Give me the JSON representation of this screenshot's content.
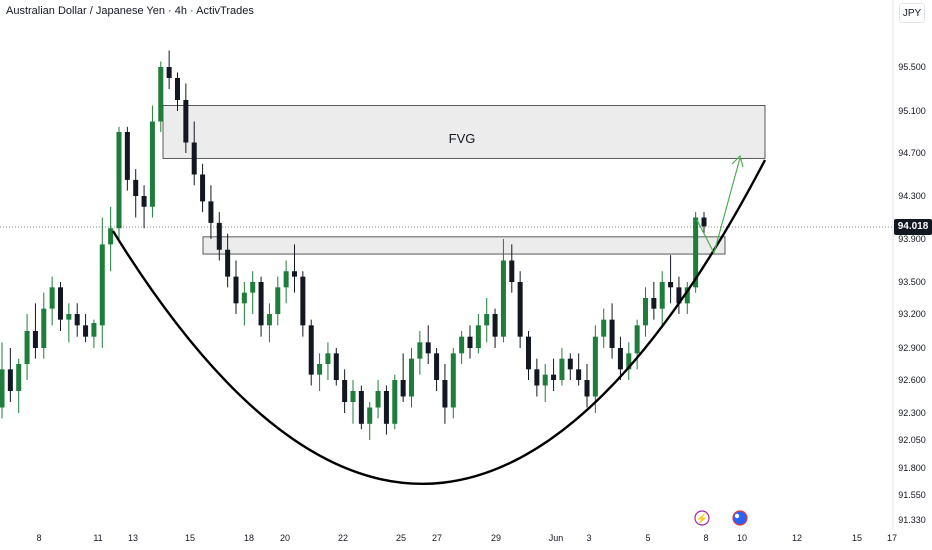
{
  "header": {
    "title": "Australian Dollar / Japanese Yen · 4h · ActivTrades",
    "currency": "JPY"
  },
  "price_tag": "94.018",
  "colors": {
    "bull": "#1e7d3a",
    "bear": "#131722",
    "curve": "#000000",
    "zone_fill": "#ececec",
    "zone_stroke": "#333333",
    "arrow": "#4caf50",
    "event_purple": "#9c27b0",
    "event_blue": "#2962ff"
  },
  "chart_data": {
    "type": "candlestick",
    "title": "Australian Dollar / Japanese Yen · 4h · ActivTrades",
    "xlabel": "",
    "ylabel": "",
    "ylim": [
      91.2,
      95.8
    ],
    "y_ticks": [
      "95.500",
      "95.100",
      "94.700",
      "94.300",
      "93.900",
      "93.500",
      "93.200",
      "92.900",
      "92.600",
      "92.300",
      "92.050",
      "91.800",
      "91.550",
      "91.330"
    ],
    "x_ticks": [
      "8",
      "11",
      "13",
      "15",
      "18",
      "20",
      "22",
      "25",
      "27",
      "29",
      "Jun",
      "3",
      "5",
      "8",
      "10",
      "12",
      "15",
      "17"
    ],
    "last_price": 94.018,
    "annotations": [
      {
        "type": "zone",
        "label": "FVG",
        "x_from": "13",
        "x_to": "10",
        "y_from": 94.65,
        "y_to": 95.15
      },
      {
        "type": "zone",
        "label": "",
        "x_from": "15",
        "x_to": "8",
        "y_from": 93.76,
        "y_to": 93.92
      },
      {
        "type": "curve",
        "label": "",
        "description": "cup"
      },
      {
        "type": "arrow",
        "label": "",
        "from": 93.78,
        "to": 94.7
      }
    ],
    "series": [
      {
        "name": "AUDJPY",
        "ohlc": [
          [
            92.35,
            92.95,
            92.25,
            92.7
          ],
          [
            92.7,
            92.9,
            92.4,
            92.5
          ],
          [
            92.5,
            92.8,
            92.3,
            92.75
          ],
          [
            92.75,
            93.2,
            92.6,
            93.05
          ],
          [
            93.05,
            93.3,
            92.8,
            92.9
          ],
          [
            92.9,
            93.4,
            92.8,
            93.25
          ],
          [
            93.25,
            93.55,
            93.1,
            93.45
          ],
          [
            93.45,
            93.5,
            93.05,
            93.15
          ],
          [
            93.15,
            93.3,
            92.95,
            93.2
          ],
          [
            93.2,
            93.3,
            93.0,
            93.1
          ],
          [
            93.1,
            93.2,
            92.95,
            93.0
          ],
          [
            93.0,
            93.15,
            92.9,
            93.12
          ],
          [
            93.1,
            94.1,
            92.9,
            93.85
          ],
          [
            93.85,
            94.2,
            93.6,
            94.0
          ],
          [
            94.0,
            94.95,
            93.9,
            94.9
          ],
          [
            94.9,
            94.95,
            94.35,
            94.45
          ],
          [
            94.45,
            94.55,
            94.1,
            94.3
          ],
          [
            94.3,
            94.4,
            94.0,
            94.2
          ],
          [
            94.2,
            95.15,
            94.1,
            95.0
          ],
          [
            95.0,
            95.55,
            94.9,
            95.5
          ],
          [
            95.5,
            95.65,
            95.3,
            95.4
          ],
          [
            95.4,
            95.45,
            95.1,
            95.2
          ],
          [
            95.2,
            95.35,
            94.7,
            94.8
          ],
          [
            94.8,
            95.0,
            94.4,
            94.5
          ],
          [
            94.5,
            94.6,
            94.15,
            94.25
          ],
          [
            94.25,
            94.4,
            93.9,
            94.05
          ],
          [
            94.05,
            94.15,
            93.7,
            93.8
          ],
          [
            93.8,
            93.95,
            93.45,
            93.55
          ],
          [
            93.55,
            93.7,
            93.2,
            93.3
          ],
          [
            93.3,
            93.5,
            93.1,
            93.4
          ],
          [
            93.4,
            93.6,
            93.2,
            93.5
          ],
          [
            93.5,
            93.55,
            93.0,
            93.1
          ],
          [
            93.1,
            93.3,
            92.95,
            93.2
          ],
          [
            93.2,
            93.55,
            93.1,
            93.45
          ],
          [
            93.45,
            93.7,
            93.3,
            93.6
          ],
          [
            93.6,
            93.85,
            93.4,
            93.55
          ],
          [
            93.55,
            93.6,
            93.0,
            93.1
          ],
          [
            93.1,
            93.15,
            92.55,
            92.65
          ],
          [
            92.65,
            92.85,
            92.5,
            92.75
          ],
          [
            92.75,
            92.95,
            92.6,
            92.85
          ],
          [
            92.85,
            92.9,
            92.55,
            92.6
          ],
          [
            92.6,
            92.7,
            92.3,
            92.4
          ],
          [
            92.4,
            92.6,
            92.2,
            92.5
          ],
          [
            92.5,
            92.55,
            92.15,
            92.2
          ],
          [
            92.2,
            92.4,
            92.05,
            92.35
          ],
          [
            92.35,
            92.6,
            92.25,
            92.5
          ],
          [
            92.5,
            92.55,
            92.1,
            92.2
          ],
          [
            92.2,
            92.65,
            92.15,
            92.6
          ],
          [
            92.6,
            92.85,
            92.4,
            92.45
          ],
          [
            92.45,
            92.9,
            92.35,
            92.8
          ],
          [
            92.8,
            93.05,
            92.65,
            92.95
          ],
          [
            92.95,
            93.1,
            92.75,
            92.85
          ],
          [
            92.85,
            92.9,
            92.5,
            92.6
          ],
          [
            92.6,
            92.75,
            92.2,
            92.35
          ],
          [
            92.35,
            92.9,
            92.25,
            92.85
          ],
          [
            92.85,
            93.05,
            92.75,
            93.0
          ],
          [
            93.0,
            93.1,
            92.8,
            92.9
          ],
          [
            92.9,
            93.2,
            92.85,
            93.1
          ],
          [
            93.1,
            93.35,
            92.95,
            93.2
          ],
          [
            93.2,
            93.25,
            92.9,
            93.0
          ],
          [
            93.0,
            93.9,
            92.95,
            93.7
          ],
          [
            93.7,
            93.85,
            93.4,
            93.5
          ],
          [
            93.5,
            93.6,
            92.9,
            93.0
          ],
          [
            93.0,
            93.05,
            92.6,
            92.7
          ],
          [
            92.7,
            92.8,
            92.45,
            92.55
          ],
          [
            92.55,
            92.75,
            92.4,
            92.65
          ],
          [
            92.65,
            92.8,
            92.5,
            92.6
          ],
          [
            92.6,
            92.9,
            92.55,
            92.8
          ],
          [
            92.8,
            92.85,
            92.6,
            92.7
          ],
          [
            92.7,
            92.85,
            92.55,
            92.6
          ],
          [
            92.6,
            92.75,
            92.35,
            92.45
          ],
          [
            92.45,
            93.1,
            92.3,
            93.0
          ],
          [
            93.0,
            93.25,
            92.9,
            93.15
          ],
          [
            93.15,
            93.3,
            92.8,
            92.9
          ],
          [
            92.9,
            93.0,
            92.6,
            92.7
          ],
          [
            92.7,
            92.95,
            92.6,
            92.85
          ],
          [
            92.85,
            93.15,
            92.7,
            93.1
          ],
          [
            93.1,
            93.45,
            93.0,
            93.35
          ],
          [
            93.35,
            93.5,
            93.15,
            93.25
          ],
          [
            93.25,
            93.6,
            93.1,
            93.5
          ],
          [
            93.5,
            93.75,
            93.3,
            93.45
          ],
          [
            93.45,
            93.55,
            93.2,
            93.3
          ],
          [
            93.3,
            93.5,
            93.2,
            93.45
          ],
          [
            93.45,
            94.15,
            93.4,
            94.1
          ],
          [
            94.1,
            94.15,
            93.95,
            94.018
          ]
        ]
      }
    ]
  },
  "event_markers": {
    "purple": "⚡",
    "blue": "●"
  }
}
